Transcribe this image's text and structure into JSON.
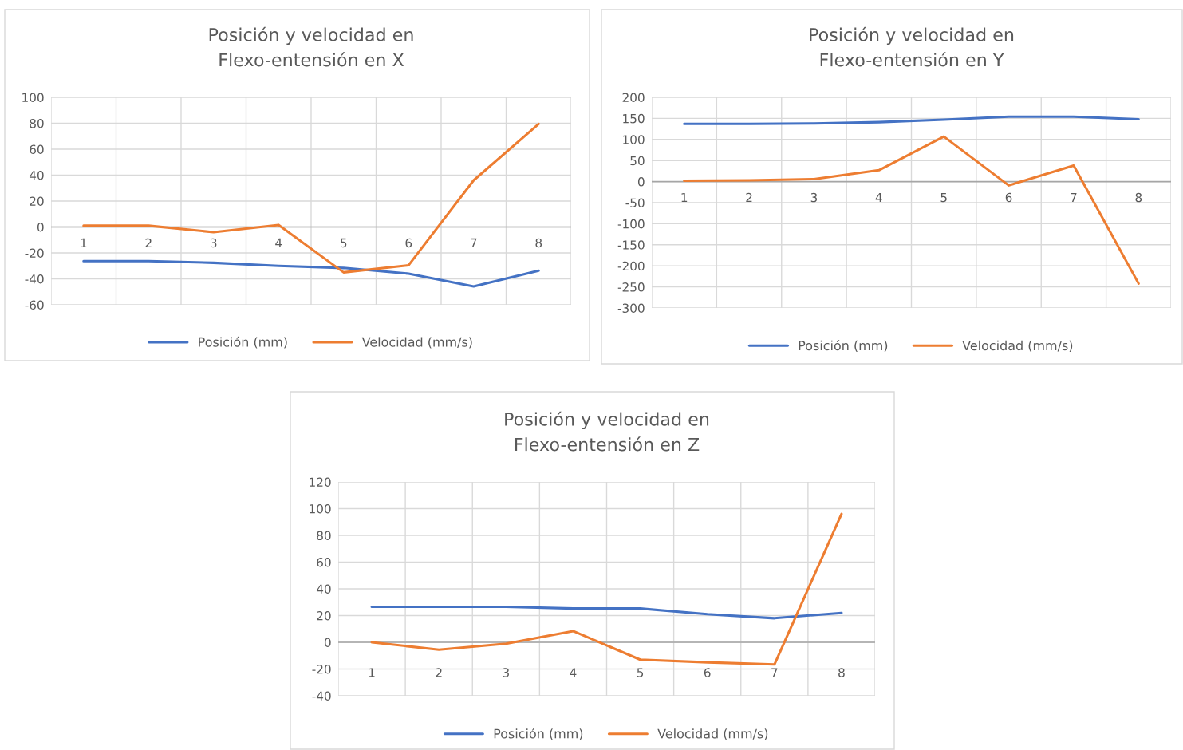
{
  "chart_data": [
    {
      "type": "line",
      "title": "Posición y velocidad en\nFlexo-entensión en X",
      "categories": [
        "1",
        "2",
        "3",
        "4",
        "5",
        "6",
        "7",
        "8"
      ],
      "series": [
        {
          "name": "Posición (mm)",
          "color": "#4472c4",
          "values": [
            -26.3,
            -26.3,
            -27.6,
            -30,
            -31.6,
            -36,
            -45.8,
            -33.7
          ]
        },
        {
          "name": "Velocidad (mm/s)",
          "color": "#ed7d31",
          "values": [
            1,
            1,
            -4,
            1.6,
            -35,
            -29.5,
            36,
            79.5
          ]
        }
      ],
      "ylim": [
        -60,
        100
      ],
      "yticks": [
        -60,
        -40,
        -20,
        0,
        20,
        40,
        60,
        80,
        100
      ],
      "grid": true,
      "legend": "bottom",
      "marker": "none",
      "line_style": "solid"
    },
    {
      "type": "line",
      "title": "Posición y velocidad en\nFlexo-entensión en Y",
      "categories": [
        "1",
        "2",
        "3",
        "4",
        "5",
        "6",
        "7",
        "8"
      ],
      "series": [
        {
          "name": "Posición (mm)",
          "color": "#4472c4",
          "values": [
            137,
            137,
            138,
            141,
            147,
            154,
            154,
            148
          ]
        },
        {
          "name": "Velocidad (mm/s)",
          "color": "#ed7d31",
          "values": [
            2,
            3,
            6,
            27,
            107,
            -9,
            38,
            -242
          ]
        }
      ],
      "ylim": [
        -300,
        200
      ],
      "yticks": [
        -300,
        -250,
        -200,
        -150,
        -100,
        -50,
        0,
        50,
        100,
        150,
        200
      ],
      "grid": true,
      "legend": "bottom",
      "marker": "none",
      "line_style": "solid"
    },
    {
      "type": "line",
      "title": "Posición y velocidad en\nFlexo-entensión en Z",
      "categories": [
        "1",
        "2",
        "3",
        "4",
        "5",
        "6",
        "7",
        "8"
      ],
      "series": [
        {
          "name": "Posición (mm)",
          "color": "#4472c4",
          "values": [
            26.6,
            26.6,
            26.6,
            25.3,
            25.3,
            21,
            18,
            22
          ]
        },
        {
          "name": "Velocidad (mm/s)",
          "color": "#ed7d31",
          "values": [
            0,
            -5.5,
            -1,
            8.4,
            -13,
            -15,
            -16.6,
            96
          ]
        }
      ],
      "ylim": [
        -40,
        120
      ],
      "yticks": [
        -40,
        -20,
        0,
        20,
        40,
        60,
        80,
        100,
        120
      ],
      "grid": true,
      "legend": "bottom",
      "marker": "none",
      "line_style": "solid"
    }
  ]
}
